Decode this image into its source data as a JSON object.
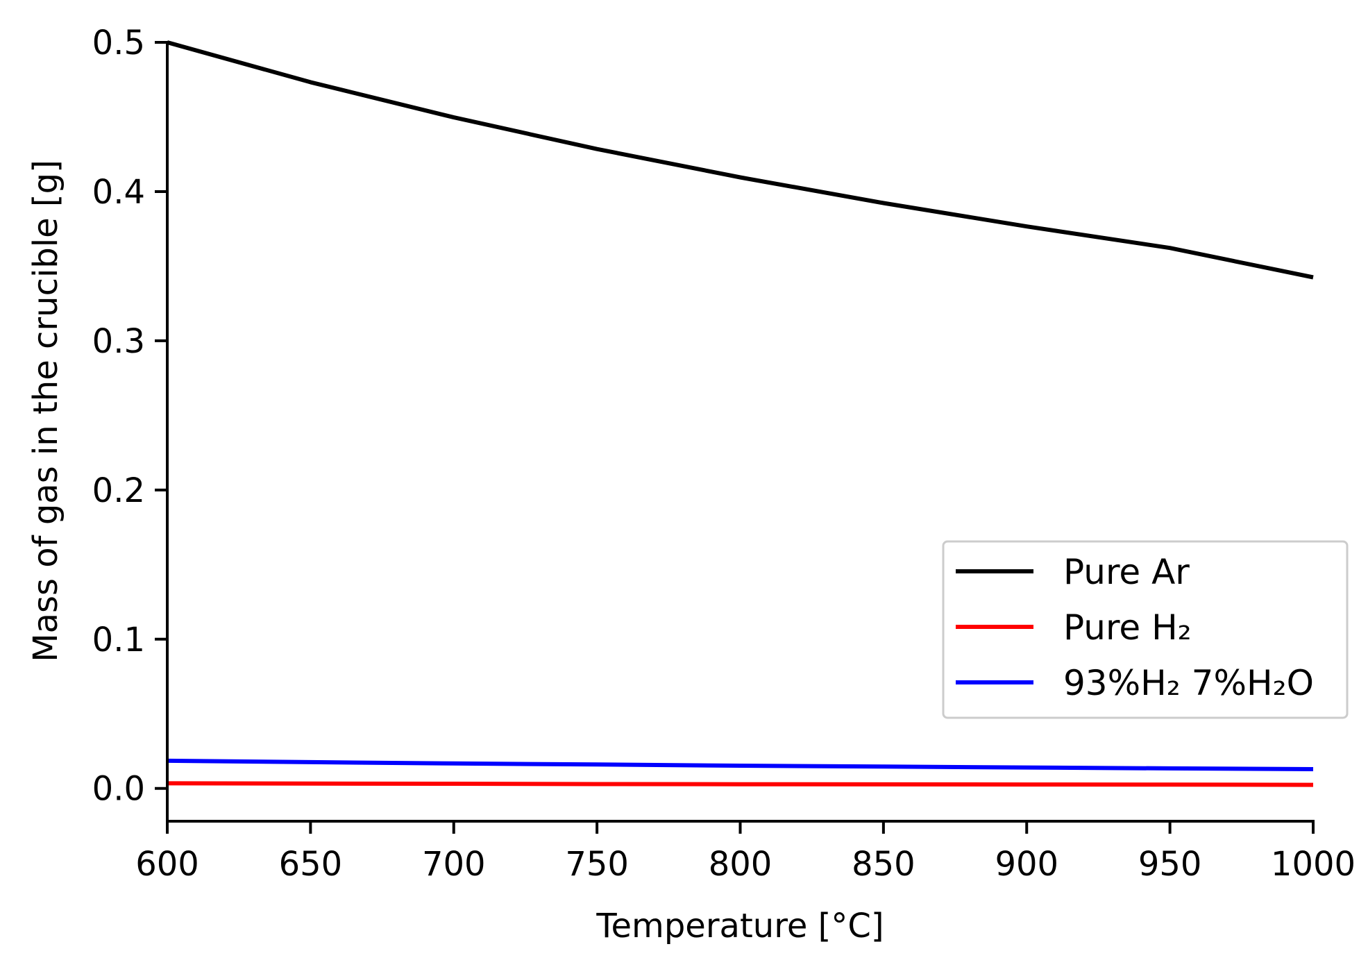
{
  "chart_data": {
    "type": "line",
    "title": "",
    "xlabel": "Temperature [°C]",
    "ylabel": "Mass of gas in the crucible [g]",
    "xlim": [
      600,
      1000
    ],
    "ylim": [
      -0.022,
      0.5
    ],
    "xticks": [
      600,
      650,
      700,
      750,
      800,
      850,
      900,
      950,
      1000
    ],
    "yticks": [
      0.0,
      0.1,
      0.2,
      0.3,
      0.4,
      0.5
    ],
    "x_tick_labels": [
      "600",
      "650",
      "700",
      "750",
      "800",
      "850",
      "900",
      "950",
      "1000"
    ],
    "y_tick_labels": [
      "0.0",
      "0.1",
      "0.2",
      "0.3",
      "0.4",
      "0.5"
    ],
    "grid": false,
    "legend_position": "center-right",
    "x": [
      600,
      650,
      700,
      750,
      800,
      850,
      900,
      950,
      1000
    ],
    "series": [
      {
        "name": "Pure Ar",
        "color": "#000000",
        "values": [
          0.5,
          0.4733,
          0.4497,
          0.4285,
          0.4095,
          0.3923,
          0.3766,
          0.3622,
          0.3425
        ]
      },
      {
        "name": "Pure H₂",
        "color": "#ff0000",
        "values": [
          0.0034,
          0.0032,
          0.0031,
          0.0029,
          0.0028,
          0.0027,
          0.0026,
          0.0025,
          0.0024
        ]
      },
      {
        "name": "93%H₂ 7%H₂O",
        "color": "#0000ff",
        "values": [
          0.0185,
          0.0176,
          0.0167,
          0.016,
          0.0152,
          0.0146,
          0.014,
          0.0134,
          0.0129
        ]
      }
    ]
  }
}
